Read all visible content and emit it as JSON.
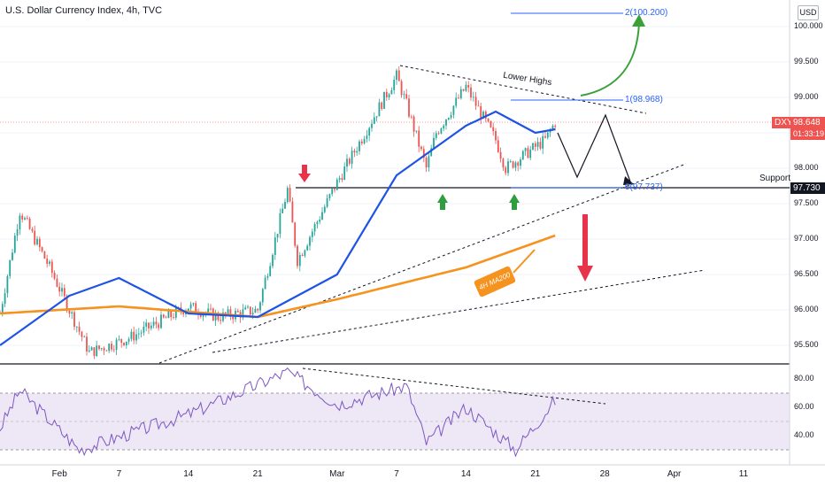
{
  "header": {
    "title": "U.S. Dollar Currency Index, 4h, TVC",
    "currency": "USD"
  },
  "annotations": {
    "lower_highs": "Lower Highs",
    "support": "Support",
    "ma200": "4H MA200",
    "fib_2": "2(100.200)",
    "fib_1": "1(98.968)",
    "fib_0": "0(97.737)",
    "symbol_tag": "DXY",
    "last_price": "98.648",
    "countdown": "01:33:19",
    "support_price": "97.730"
  },
  "colors": {
    "candle_up": "#26a69a",
    "candle_down": "#ef5350",
    "ma_blue": "#1e53e5",
    "ma_orange": "#f6921e",
    "rsi_line": "#7e57c2",
    "rsi_band": "#ede7f6",
    "fib": "#2962ff",
    "arrow_red": "#e8344a",
    "arrow_green": "#2e9e3e",
    "curve_green": "#3aa03a"
  },
  "chart_data": {
    "type": "candlestick",
    "title": "U.S. Dollar Currency Index, 4h, TVC",
    "y_ticks": [
      "100.000",
      "99.500",
      "99.000",
      "98.500",
      "98.000",
      "97.500",
      "97.000",
      "96.500",
      "96.000",
      "95.500"
    ],
    "x_ticks": [
      "Feb",
      "7",
      "14",
      "21",
      "Mar",
      "7",
      "14",
      "21",
      "28",
      "Apr",
      "11"
    ],
    "ylim": [
      95.3,
      100.3
    ],
    "price_path": [
      {
        "date": "Jan 26",
        "close": 95.95
      },
      {
        "date": "Jan 28",
        "close": 97.4
      },
      {
        "date": "Jan 31",
        "close": 96.6
      },
      {
        "date": "Feb 3",
        "close": 95.7
      },
      {
        "date": "Feb 4",
        "close": 95.4
      },
      {
        "date": "Feb 8",
        "close": 95.6
      },
      {
        "date": "Feb 14",
        "close": 96.05
      },
      {
        "date": "Feb 17",
        "close": 95.9
      },
      {
        "date": "Feb 21",
        "close": 96.0
      },
      {
        "date": "Feb 24",
        "close": 97.7
      },
      {
        "date": "Feb 25",
        "close": 96.7
      },
      {
        "date": "Mar 1",
        "close": 97.8
      },
      {
        "date": "Mar 7",
        "close": 99.3
      },
      {
        "date": "Mar 8",
        "close": 98.9
      },
      {
        "date": "Mar 10",
        "close": 98.0
      },
      {
        "date": "Mar 11",
        "close": 98.5
      },
      {
        "date": "Mar 14",
        "close": 99.15
      },
      {
        "date": "Mar 17",
        "close": 98.4
      },
      {
        "date": "Mar 18",
        "close": 98.0
      },
      {
        "date": "Mar 22",
        "close": 98.4
      },
      {
        "date": "Mar 23",
        "close": 98.648
      }
    ],
    "series": [
      {
        "name": "4H MA200",
        "color": "#f6921e",
        "values": [
          {
            "date": "Jan 26",
            "value": 95.95
          },
          {
            "date": "Feb 7",
            "value": 96.05
          },
          {
            "date": "Feb 21",
            "value": 95.9
          },
          {
            "date": "Mar 1",
            "value": 96.15
          },
          {
            "date": "Mar 14",
            "value": 96.6
          },
          {
            "date": "Mar 23",
            "value": 97.05
          }
        ]
      },
      {
        "name": "MA50 (blue)",
        "color": "#1e53e5",
        "values": [
          {
            "date": "Jan 26",
            "value": 95.5
          },
          {
            "date": "Feb 2",
            "value": 96.2
          },
          {
            "date": "Feb 7",
            "value": 96.45
          },
          {
            "date": "Feb 14",
            "value": 95.95
          },
          {
            "date": "Feb 21",
            "value": 95.9
          },
          {
            "date": "Mar 1",
            "value": 96.5
          },
          {
            "date": "Mar 7",
            "value": 97.9
          },
          {
            "date": "Mar 14",
            "value": 98.6
          },
          {
            "date": "Mar 17",
            "value": 98.8
          },
          {
            "date": "Mar 21",
            "value": 98.5
          },
          {
            "date": "Mar 23",
            "value": 98.55
          }
        ]
      }
    ],
    "levels": {
      "support": 97.73,
      "fib_0": 97.737,
      "fib_1": 98.968,
      "fib_2": 100.2
    },
    "rsi": {
      "y_ticks": [
        "80.00",
        "60.00",
        "40.00"
      ],
      "band": [
        30,
        70
      ],
      "values": [
        {
          "date": "Jan 26",
          "value": 45
        },
        {
          "date": "Jan 28",
          "value": 72
        },
        {
          "date": "Feb 3",
          "value": 30
        },
        {
          "date": "Feb 14",
          "value": 55
        },
        {
          "date": "Feb 24",
          "value": 85
        },
        {
          "date": "Mar 1",
          "value": 62
        },
        {
          "date": "Mar 8",
          "value": 75
        },
        {
          "date": "Mar 10",
          "value": 35
        },
        {
          "date": "Mar 14",
          "value": 60
        },
        {
          "date": "Mar 19",
          "value": 30
        },
        {
          "date": "Mar 23",
          "value": 65
        }
      ]
    }
  }
}
